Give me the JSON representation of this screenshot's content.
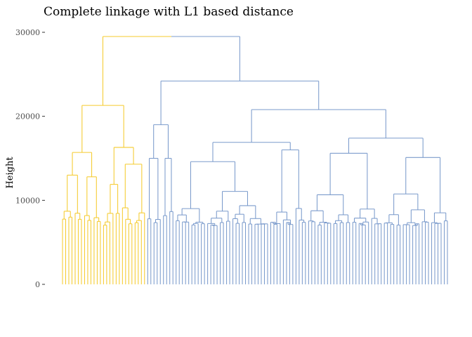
{
  "chart_data": {
    "type": "dendrogram",
    "title": "Complete linkage with L1 based distance",
    "xlabel": "",
    "ylabel": "Height",
    "ylim": [
      0,
      30000
    ],
    "y_ticks": [
      {
        "value": 0,
        "label": "0"
      },
      {
        "value": 10000,
        "label": "10000"
      },
      {
        "value": 20000,
        "label": "20000"
      },
      {
        "value": 30000,
        "label": "30000"
      }
    ],
    "grid": false,
    "legend": "none",
    "n_leaves": 123,
    "clusters": [
      {
        "name": "",
        "color": "#F5CB2E",
        "leaf_count": 27,
        "merge_height": 21300
      },
      {
        "name": "",
        "color": "#7B9BCC",
        "leaf_count": 96,
        "merge_height": 24200
      }
    ],
    "root_height": 29500,
    "subclusters": {
      "yellow": [
        {
          "height": 15700,
          "children": [
            13000,
            12800
          ]
        },
        {
          "height": 16300,
          "children": [
            11900,
            14300
          ]
        }
      ],
      "blue": [
        {
          "height": 19000,
          "children": [
            15000,
            15000
          ]
        },
        {
          "height": 20800,
          "children": [
            16900,
            17400
          ]
        },
        {
          "height": 16900,
          "children": [
            14600,
            16000
          ]
        },
        {
          "height": 17400,
          "children": [
            15600,
            15100
          ]
        }
      ]
    }
  }
}
